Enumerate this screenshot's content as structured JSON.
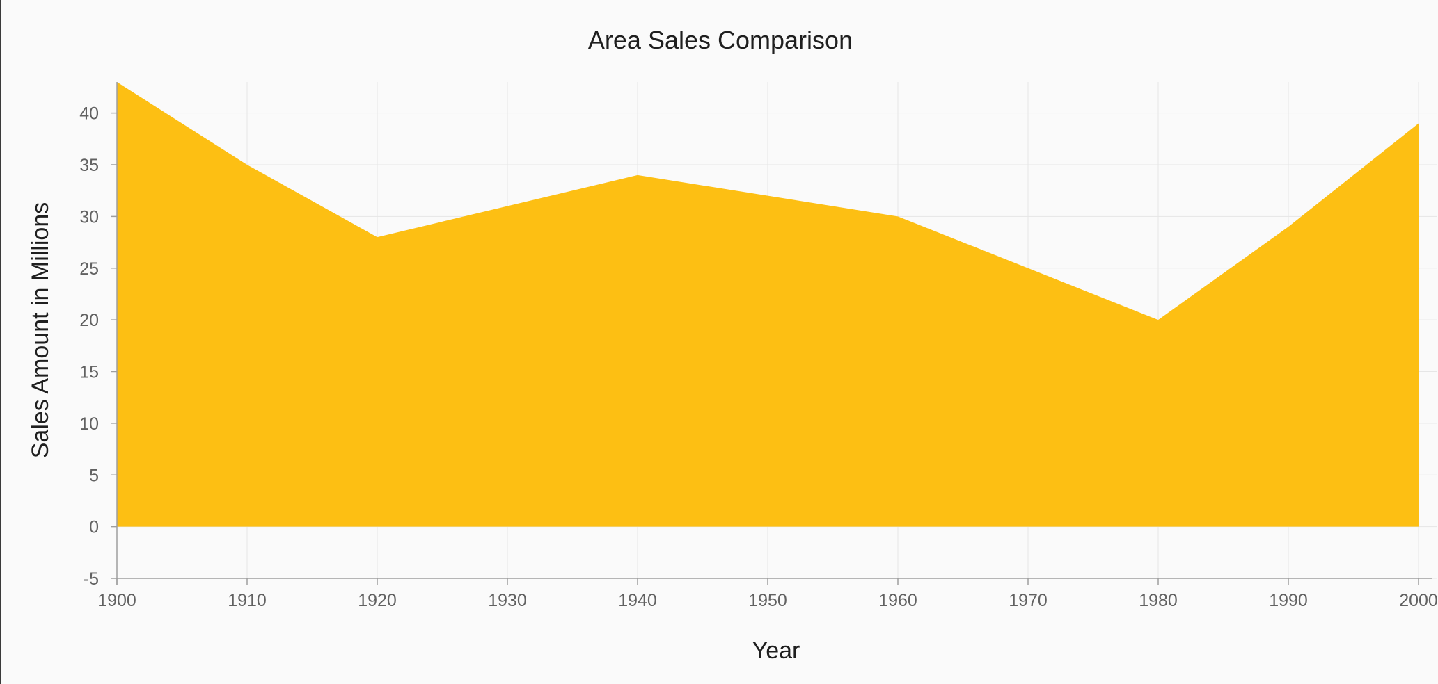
{
  "chart_data": {
    "type": "area",
    "title": "Area Sales Comparison",
    "xlabel": "Year",
    "ylabel": "Sales Amount in Millions",
    "xlim": [
      1900,
      2000
    ],
    "ylim": [
      -5,
      43
    ],
    "x_ticks": [
      1900,
      1910,
      1920,
      1930,
      1940,
      1950,
      1960,
      1970,
      1980,
      1990,
      2000
    ],
    "y_ticks": [
      -5,
      0,
      5,
      10,
      15,
      20,
      25,
      30,
      35,
      40
    ],
    "grid": true,
    "legend": "none",
    "color": "#fdbf13",
    "series": [
      {
        "x": [
          1900,
          1910,
          1920,
          1940,
          1960,
          1980,
          1990,
          2000
        ],
        "y": [
          43,
          35,
          28,
          34,
          30,
          20,
          29,
          39
        ]
      }
    ]
  }
}
